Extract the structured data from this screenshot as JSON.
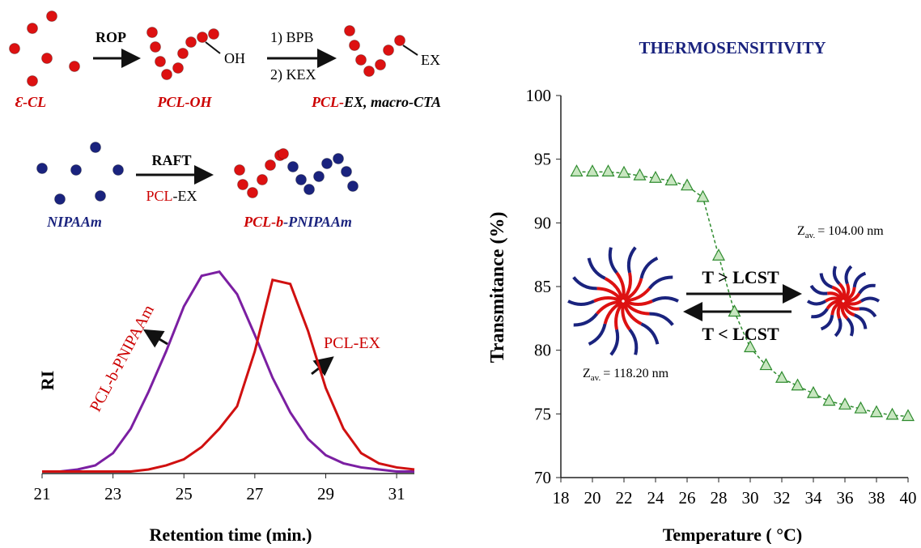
{
  "scheme": {
    "rop": "ROP",
    "oh": "OH",
    "step1": "1) BPB",
    "step2": "2) KEX",
    "ex": "EX",
    "monomer1": "Ɛ-CL",
    "pcl_oh": "PCL-OH",
    "macro_cta": {
      "pcl": "PCL-",
      "rest": "EX, macro-CTA"
    },
    "monomer2": "NIPAAm",
    "raft": "RAFT",
    "raft_cta": {
      "pcl": "PCL",
      "rest": "-EX"
    },
    "product": {
      "pcl": "PCL-",
      "b": "b",
      "pnipaam": "-PNIPAAm"
    }
  },
  "chart_data": [
    {
      "type": "line",
      "xlabel": "Retention time (min.)",
      "ylabel": "RI",
      "x": [
        21,
        21.5,
        22,
        22.5,
        23,
        23.5,
        24,
        24.5,
        25,
        25.5,
        26,
        26.5,
        27,
        27.5,
        28,
        28.5,
        29,
        29.5,
        30,
        30.5,
        31,
        31.5
      ],
      "series": [
        {
          "name": "PCL-b-PNIPAAm",
          "color": "#7b1fa2",
          "values": [
            0.01,
            0.01,
            0.02,
            0.04,
            0.1,
            0.22,
            0.4,
            0.6,
            0.82,
            0.97,
            0.99,
            0.88,
            0.68,
            0.47,
            0.3,
            0.17,
            0.09,
            0.05,
            0.03,
            0.02,
            0.01,
            0.01
          ]
        },
        {
          "name": "PCL-EX",
          "color": "#d01010",
          "values": [
            0.01,
            0.01,
            0.01,
            0.01,
            0.01,
            0.01,
            0.02,
            0.04,
            0.07,
            0.13,
            0.22,
            0.33,
            0.6,
            0.95,
            0.93,
            0.7,
            0.42,
            0.22,
            0.1,
            0.05,
            0.03,
            0.02
          ]
        }
      ],
      "xlim": [
        21,
        31.5
      ],
      "xticks": [
        21,
        23,
        25,
        27,
        29,
        31
      ],
      "ylim": [
        0,
        1.1
      ]
    },
    {
      "type": "line",
      "title": "THERMOSENSITIVITY",
      "xlabel": "Temperature ( °C)",
      "ylabel": "Transmitance (%)",
      "x": [
        19,
        20,
        21,
        22,
        23,
        24,
        25,
        26,
        27,
        28,
        29,
        30,
        31,
        32,
        33,
        34,
        35,
        36,
        37,
        38,
        39,
        40
      ],
      "series": [
        {
          "color": "#2e8b2e",
          "marker": "triangle",
          "linestyle": "dashed",
          "values": [
            94.0,
            94.0,
            94.0,
            93.9,
            93.7,
            93.5,
            93.3,
            92.9,
            92.0,
            87.4,
            83.0,
            80.2,
            78.8,
            77.8,
            77.2,
            76.6,
            76.0,
            75.7,
            75.4,
            75.1,
            74.9,
            74.8
          ]
        }
      ],
      "xlim": [
        18,
        40
      ],
      "xticks": [
        18,
        20,
        22,
        24,
        26,
        28,
        30,
        32,
        34,
        36,
        38,
        40
      ],
      "ylim": [
        70,
        100
      ],
      "yticks": [
        70,
        75,
        80,
        85,
        90,
        95,
        100
      ],
      "annotations": {
        "heat": "T > LCST",
        "cool": "T < LCST",
        "z_small": {
          "symbol": "Z",
          "sub": "av.",
          "text": "= 104.00 nm"
        },
        "z_large": {
          "symbol": "Z",
          "sub": "av.",
          "text": "= 118.20 nm"
        }
      }
    }
  ]
}
